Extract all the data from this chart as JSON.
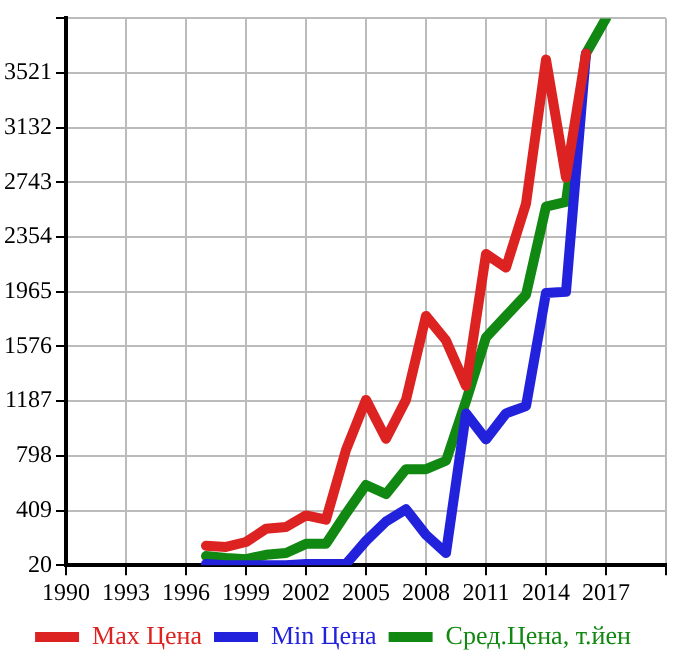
{
  "chart_data": {
    "type": "line",
    "x": [
      1997,
      1998,
      1999,
      2000,
      2001,
      2002,
      2003,
      2004,
      2005,
      2006,
      2007,
      2008,
      2009,
      2010,
      2011,
      2012,
      2013,
      2014,
      2015,
      2016,
      2017
    ],
    "series": [
      {
        "name": "Max Цена",
        "color": "#dd2222",
        "values": [
          159,
          150,
          185,
          279,
          292,
          374,
          344,
          841,
          1196,
          919,
          1196,
          1793,
          1619,
          1295,
          2234,
          2138,
          2592,
          3617,
          2779,
          3660,
          null
        ]
      },
      {
        "name": "Min Цена",
        "color": "#2222dd",
        "values": [
          29,
          20,
          20,
          20,
          20,
          29,
          29,
          29,
          193,
          331,
          418,
          236,
          107,
          1100,
          915,
          1100,
          1152,
          1957,
          1965,
          3660,
          null
        ]
      },
      {
        "name": "Сред.Цена, т.йен",
        "color": "#118811",
        "values": [
          85,
          72,
          63,
          94,
          107,
          172,
          172,
          387,
          591,
          526,
          703,
          703,
          763,
          1187,
          1641,
          1793,
          1944,
          2571,
          2605,
          3660,
          3910
        ]
      }
    ],
    "xlim": [
      1990,
      2020
    ],
    "xticks": [
      1990,
      1993,
      1996,
      1999,
      2002,
      2005,
      2008,
      2011,
      2014,
      2017,
      {
        "value": 2020,
        "label": null
      }
    ],
    "ylim": [
      20,
      3910
    ],
    "yticks": [
      20,
      409,
      798,
      1187,
      1576,
      1965,
      2354,
      2743,
      3132,
      3521,
      {
        "value": 3910,
        "label": null
      }
    ],
    "grid": true,
    "legend": "bottom",
    "marker": "none",
    "line_style": "solid"
  }
}
